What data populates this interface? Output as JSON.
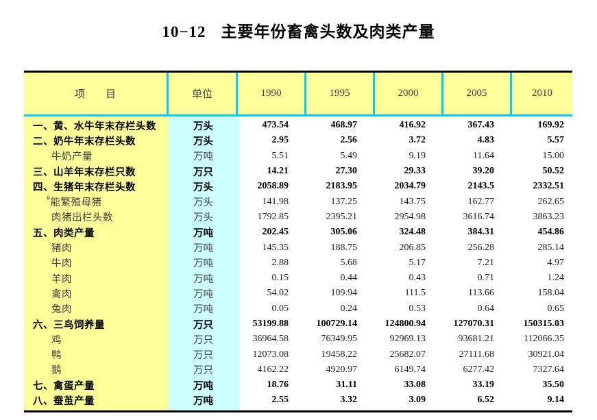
{
  "title": {
    "number": "10−12",
    "text": "主要年份畜禽头数及肉类产量"
  },
  "colors": {
    "header_bg": "#FFFF99",
    "item_column_bg": "#FFFF99",
    "unit_column_bg": "#CCFFFF",
    "divider_cyan": "#00CCFF",
    "outer_border": "#000000"
  },
  "table": {
    "columns": [
      {
        "label": "项　　目"
      },
      {
        "label": "单位"
      },
      {
        "label": "1990"
      },
      {
        "label": "1995"
      },
      {
        "label": "2000"
      },
      {
        "label": "2005"
      },
      {
        "label": "2010"
      }
    ],
    "rows": [
      {
        "label": "一、黄、水牛年末存栏头数",
        "prefix": "",
        "level": 0,
        "bold": true,
        "unit": "万头",
        "values": [
          "473.54",
          "468.97",
          "416.92",
          "367.43",
          "169.92"
        ]
      },
      {
        "label": "二、奶牛年末存栏头数",
        "prefix": "",
        "level": 0,
        "bold": true,
        "unit": "万头",
        "values": [
          "2.95",
          "2.56",
          "3.72",
          "4.83",
          "5.57"
        ]
      },
      {
        "label": "牛奶产量",
        "prefix": "",
        "level": 1,
        "bold": false,
        "unit": "万吨",
        "values": [
          "5.51",
          "5.49",
          "9.19",
          "11.64",
          "15.00"
        ]
      },
      {
        "label": "三、山羊年末存栏只数",
        "prefix": "",
        "level": 0,
        "bold": true,
        "unit": "万只",
        "values": [
          "14.21",
          "27.30",
          "29.33",
          "39.20",
          "50.52"
        ]
      },
      {
        "label": "四、生猪年末存栏头数",
        "prefix": "",
        "level": 0,
        "bold": true,
        "unit": "万头",
        "values": [
          "2058.89",
          "2183.95",
          "2034.79",
          "2143.5",
          "2332.51"
        ]
      },
      {
        "label": "能繁殖母猪",
        "prefix": "#",
        "level": 1,
        "bold": false,
        "unit": "万头",
        "values": [
          "141.98",
          "137.25",
          "143.75",
          "162.77",
          "262.65"
        ]
      },
      {
        "label": "肉猪出栏头数",
        "prefix": "",
        "level": 1,
        "bold": false,
        "unit": "万头",
        "values": [
          "1792.85",
          "2395.21",
          "2954.98",
          "3616.74",
          "3863.23"
        ]
      },
      {
        "label": "五、肉类产量",
        "prefix": "",
        "level": 0,
        "bold": true,
        "unit": "万吨",
        "values": [
          "202.45",
          "305.06",
          "324.48",
          "384.31",
          "454.86"
        ]
      },
      {
        "label": "猪肉",
        "prefix": "",
        "level": 1,
        "bold": false,
        "unit": "万吨",
        "values": [
          "145.35",
          "188.75",
          "206.85",
          "256.28",
          "285.14"
        ]
      },
      {
        "label": "牛肉",
        "prefix": "",
        "level": 1,
        "bold": false,
        "unit": "万吨",
        "values": [
          "2.88",
          "5.68",
          "5.17",
          "7.21",
          "4.97"
        ]
      },
      {
        "label": "羊肉",
        "prefix": "",
        "level": 1,
        "bold": false,
        "unit": "万吨",
        "values": [
          "0.15",
          "0.44",
          "0.43",
          "0.71",
          "1.24"
        ]
      },
      {
        "label": "禽肉",
        "prefix": "",
        "level": 1,
        "bold": false,
        "unit": "万吨",
        "values": [
          "54.02",
          "109.94",
          "111.5",
          "113.66",
          "158.04"
        ]
      },
      {
        "label": "兔肉",
        "prefix": "",
        "level": 1,
        "bold": false,
        "unit": "万吨",
        "values": [
          "0.05",
          "0.24",
          "0.53",
          "0.64",
          "0.65"
        ]
      },
      {
        "label": "六、三鸟饲养量",
        "prefix": "",
        "level": 0,
        "bold": true,
        "unit": "万只",
        "values": [
          "53199.88",
          "100729.14",
          "124800.94",
          "127070.31",
          "150315.03"
        ]
      },
      {
        "label": "鸡",
        "prefix": "",
        "level": 1,
        "bold": false,
        "unit": "万只",
        "values": [
          "36964.58",
          "76349.95",
          "92969.13",
          "93681.21",
          "112066.35"
        ]
      },
      {
        "label": "鸭",
        "prefix": "",
        "level": 1,
        "bold": false,
        "unit": "万只",
        "values": [
          "12073.08",
          "19458.22",
          "25682.07",
          "27111.68",
          "30921.04"
        ]
      },
      {
        "label": "鹅",
        "prefix": "",
        "level": 1,
        "bold": false,
        "unit": "万只",
        "values": [
          "4162.22",
          "4920.97",
          "6149.74",
          "6277.42",
          "7327.64"
        ]
      },
      {
        "label": "七、禽蛋产量",
        "prefix": "",
        "level": 0,
        "bold": true,
        "unit": "万吨",
        "values": [
          "18.76",
          "31.11",
          "33.08",
          "33.19",
          "35.50"
        ]
      },
      {
        "label": "八、蚕茧产量",
        "prefix": "",
        "level": 0,
        "bold": true,
        "unit": "万吨",
        "values": [
          "2.55",
          "3.32",
          "3.09",
          "6.52",
          "9.14"
        ]
      }
    ]
  }
}
